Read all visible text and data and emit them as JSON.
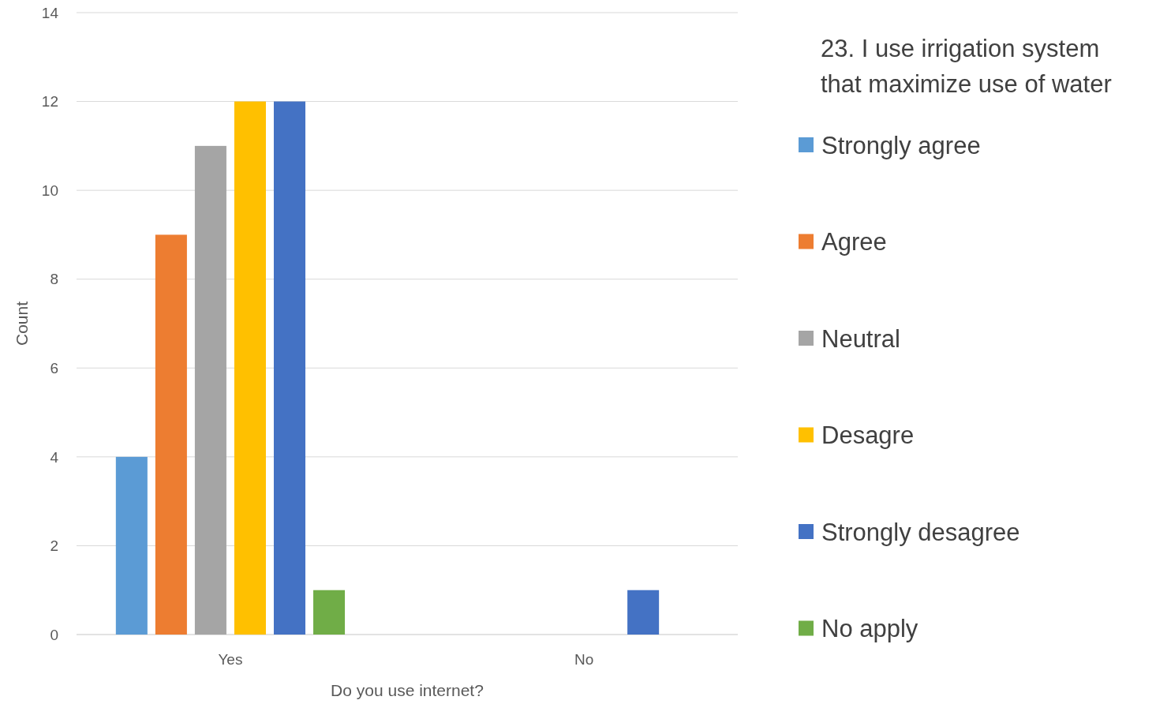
{
  "chart_data": {
    "type": "bar",
    "xlabel": "Do you use internet?",
    "ylabel": "Count",
    "legend_title": "23. I use irrigation system that maximize use of water",
    "categories": [
      "Yes",
      "No"
    ],
    "ylim": [
      0,
      14
    ],
    "yticks": [
      0,
      2,
      4,
      6,
      8,
      10,
      12,
      14
    ],
    "grid": "y",
    "legend": "right",
    "series": [
      {
        "name": "Strongly agree",
        "color": "#5b9bd5",
        "values": [
          4,
          0
        ]
      },
      {
        "name": "Agree",
        "color": "#ed7d31",
        "values": [
          9,
          0
        ]
      },
      {
        "name": "Neutral",
        "color": "#a5a5a5",
        "values": [
          11,
          0
        ]
      },
      {
        "name": "Desagre",
        "color": "#ffc000",
        "values": [
          12,
          0
        ]
      },
      {
        "name": "Strongly desagree",
        "color": "#4472c4",
        "values": [
          12,
          1
        ]
      },
      {
        "name": "No apply",
        "color": "#70ad47",
        "values": [
          1,
          0
        ]
      }
    ]
  }
}
